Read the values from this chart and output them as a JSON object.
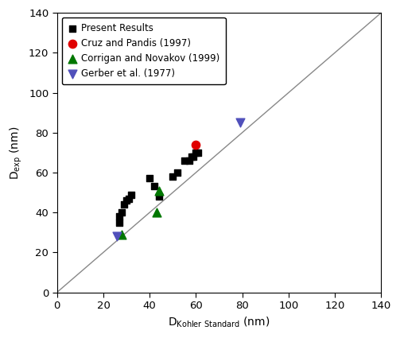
{
  "title": "",
  "xlabel": "D$_\\mathrm{Kohler\\ Standard}$ (nm)",
  "ylabel": "D$_\\mathrm{exp}$ (nm)",
  "xlim": [
    0,
    140
  ],
  "ylim": [
    0,
    140
  ],
  "xticks": [
    0,
    20,
    40,
    60,
    80,
    100,
    120,
    140
  ],
  "yticks": [
    0,
    20,
    40,
    60,
    80,
    100,
    120,
    140
  ],
  "present_results": {
    "x": [
      27,
      27,
      28,
      29,
      30,
      31,
      32,
      40,
      42,
      44,
      50,
      52,
      55,
      57,
      58,
      59,
      60,
      61
    ],
    "y": [
      35,
      38,
      40,
      44,
      46,
      47,
      49,
      57,
      53,
      48,
      58,
      60,
      66,
      66,
      68,
      68,
      70,
      70
    ],
    "color": "#000000",
    "marker": "s",
    "size": 40,
    "label": "Present Results"
  },
  "cruz_pandis": {
    "x": [
      60
    ],
    "y": [
      74
    ],
    "color": "#e00000",
    "marker": "o",
    "size": 55,
    "label": "Cruz and Pandis (1997)"
  },
  "corrigan_novakov": {
    "x": [
      28,
      43,
      44
    ],
    "y": [
      29,
      40,
      51
    ],
    "color": "#007700",
    "marker": "^",
    "size": 60,
    "label": "Corrigan and Novakov (1999)"
  },
  "gerber": {
    "x": [
      26,
      79
    ],
    "y": [
      28,
      85
    ],
    "color": "#5050bb",
    "marker": "v",
    "size": 60,
    "label": "Gerber et al. (1977)"
  },
  "line_color": "#888888",
  "background_color": "#ffffff",
  "figsize": [
    5.03,
    4.25
  ],
  "dpi": 100
}
